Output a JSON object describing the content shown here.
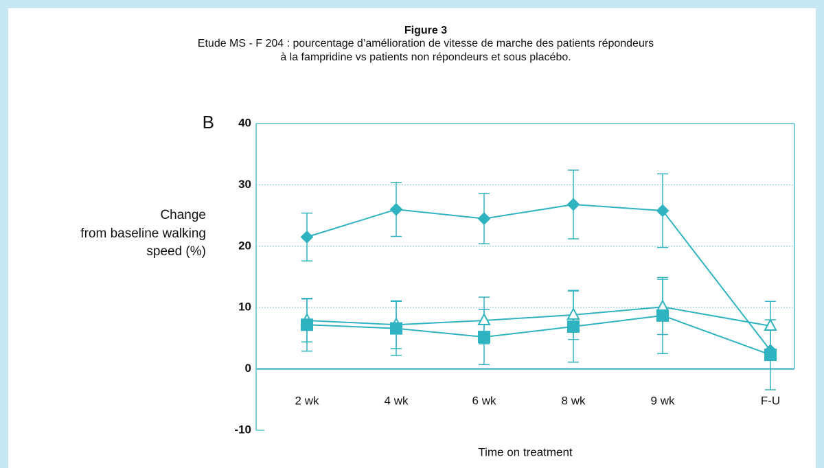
{
  "chart_data": {
    "type": "line",
    "title": "Figure 3",
    "subtitle": [
      "Etude MS - F 204 : pourcentage d’amélioration de vitesse de marche des patients répondeurs",
      "à la fampridine vs patients non répondeurs et sous placébo."
    ],
    "panel_label": "B",
    "y_label": [
      "Change",
      "from baseline walking",
      "speed (%)"
    ],
    "x_label": "Time on treatment",
    "categories": [
      "2 wk",
      "4 wk",
      "6 wk",
      "8 wk",
      "9 wk",
      "F-U"
    ],
    "series": [
      {
        "color": "#2fb3c1",
        "marker": "diamond",
        "filled": true,
        "values": [
          21.5,
          26,
          24.5,
          26.8,
          25.8,
          3.0
        ],
        "errors": [
          3.9,
          4.4,
          4.1,
          5.6,
          6.0,
          null
        ]
      },
      {
        "color": "#2fb3c1",
        "marker": "triangle",
        "filled": false,
        "values": [
          7.9,
          7.2,
          7.9,
          8.8,
          10.1,
          7.0
        ],
        "errors": [
          3.5,
          3.9,
          3.8,
          4.0,
          4.5,
          4.0
        ]
      },
      {
        "color": "#2fb3c1",
        "marker": "square",
        "filled": true,
        "values": [
          7.2,
          6.6,
          5.2,
          6.9,
          8.7,
          2.3
        ],
        "errors": [
          4.3,
          4.4,
          4.5,
          5.8,
          6.2,
          5.7
        ]
      }
    ],
    "ylim": [
      -10,
      40
    ],
    "yticks": [
      -10,
      0,
      10,
      20,
      30,
      40
    ],
    "grid": true
  }
}
